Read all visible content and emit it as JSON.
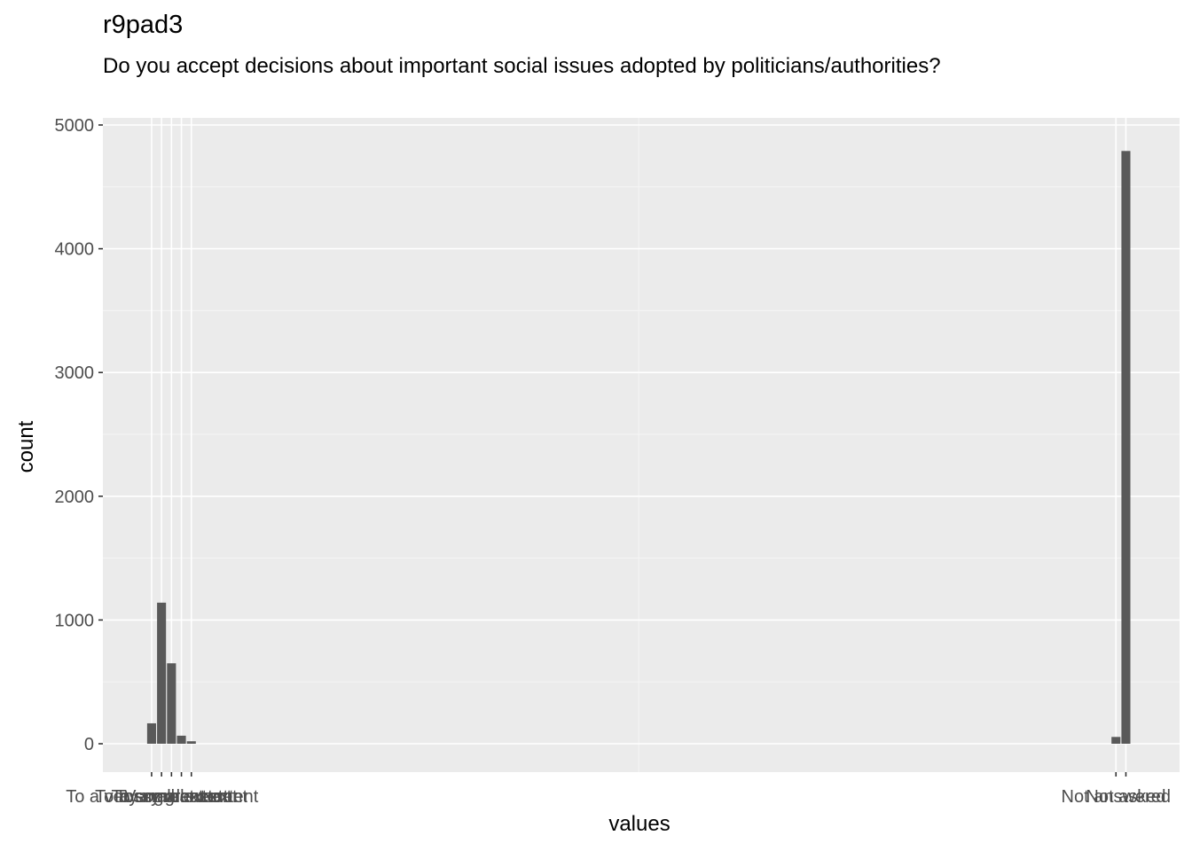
{
  "chart_data": {
    "type": "bar",
    "title": "r9pad3",
    "subtitle": "Do you accept decisions about important social issues adopted by politicians/authorities?",
    "xlabel": "values",
    "ylabel": "count",
    "ylim": [
      0,
      5000
    ],
    "yticks": [
      0,
      1000,
      2000,
      3000,
      4000,
      5000
    ],
    "xlim": [
      -4.9,
      103.4
    ],
    "grid": true,
    "bars": [
      {
        "x": 0,
        "value": 165
      },
      {
        "x": 1,
        "value": 1140
      },
      {
        "x": 2,
        "value": 650
      },
      {
        "x": 3,
        "value": 65
      },
      {
        "x": 4,
        "value": 20
      },
      {
        "x": 97,
        "value": 55
      },
      {
        "x": 98,
        "value": 4790
      }
    ],
    "xticks": [
      {
        "x": 0,
        "label": "To a very small extent"
      },
      {
        "x": 1,
        "label": "To a small extent"
      },
      {
        "x": 2,
        "label": "To some extent"
      },
      {
        "x": 3,
        "label": "To a great extent"
      },
      {
        "x": 4,
        "label": "Very great extent"
      },
      {
        "x": 97,
        "label": "Not answered"
      },
      {
        "x": 98,
        "label": "Not asked"
      }
    ],
    "colors": {
      "panel": "#EBEBEB",
      "grid_major": "#FFFFFF",
      "bar": "#595959",
      "tick_text": "#4D4D4D",
      "tick": "#333333"
    }
  }
}
